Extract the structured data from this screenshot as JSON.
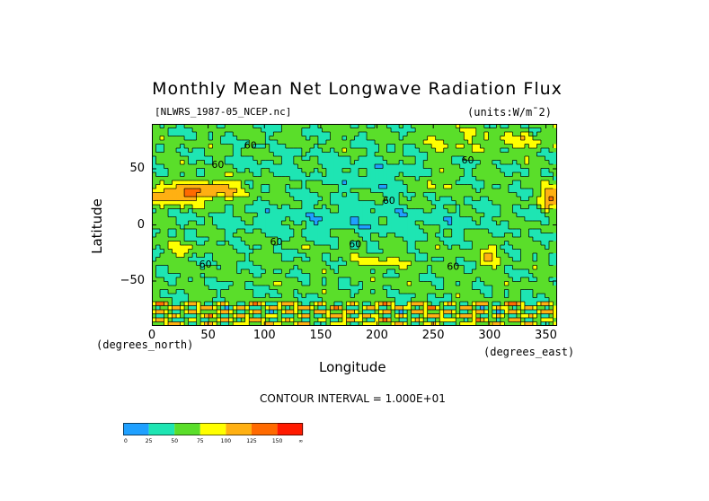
{
  "title": "Monthly Mean Net Longwave Radiation Flux",
  "file_label": "[NLWRS_1987-05_NCEP.nc]",
  "units": "(units:W/m^2)",
  "contour_interval": "CONTOUR INTERVAL = 1.000E+01",
  "colors": {
    "bins": [
      "#1fa0ff",
      "#1ee5b3",
      "#5ade2a",
      "#ffff00",
      "#ffb012",
      "#ff6a00",
      "#ff1a00"
    ],
    "contour": "#000000"
  },
  "chart_data": {
    "type": "heatmap",
    "title": "Monthly Mean Net Longwave Radiation Flux",
    "xlabel": "Longitude",
    "ylabel": "Latitude",
    "x_unit_label": "(degrees_east)",
    "y_unit_label": "(degrees_north)",
    "xlim": [
      0,
      360
    ],
    "ylim": [
      -90,
      90
    ],
    "x_ticks": [
      "0",
      "50",
      "100",
      "150",
      "200",
      "250",
      "300",
      "350"
    ],
    "y_ticks": [
      "50",
      "0",
      "−50"
    ],
    "x_tick_values": [
      0,
      50,
      100,
      150,
      200,
      250,
      300,
      350
    ],
    "y_tick_values": [
      50,
      0,
      -50
    ],
    "contour_labels": [
      {
        "text": "60",
        "lon": 82,
        "lat": 68
      },
      {
        "text": "60",
        "lon": 53,
        "lat": 51
      },
      {
        "text": "60",
        "lon": 275,
        "lat": 55
      },
      {
        "text": "60",
        "lon": 205,
        "lat": 19
      },
      {
        "text": "60",
        "lon": 105,
        "lat": -18
      },
      {
        "text": "60",
        "lon": 175,
        "lat": -20
      },
      {
        "text": "60",
        "lon": 42,
        "lat": -38
      },
      {
        "text": "60",
        "lon": 262,
        "lat": -40
      }
    ],
    "colorbar": {
      "levels": [
        "0",
        "25",
        "50",
        "75",
        "100",
        "125",
        "150",
        "∞"
      ],
      "bins": [
        [
          0,
          25
        ],
        [
          25,
          50
        ],
        [
          50,
          75
        ],
        [
          75,
          100
        ],
        [
          100,
          125
        ],
        [
          125,
          150
        ],
        [
          150,
          "inf"
        ]
      ]
    }
  }
}
